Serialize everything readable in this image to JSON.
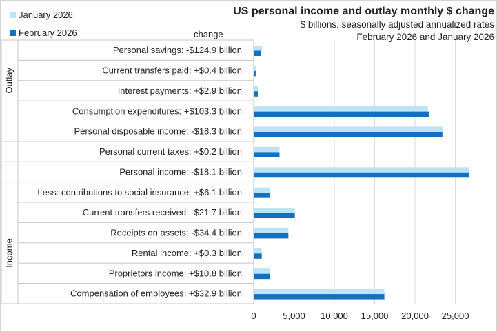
{
  "chart_data": {
    "type": "bar",
    "orientation": "horizontal",
    "title": "US personal income and outlay monthly $ change",
    "subtitle_lines": [
      "$ billions, seasonally adjusted annualized rates",
      "February 2026 and January 2026"
    ],
    "category_header": "change",
    "groups": [
      {
        "name": "Outlay",
        "rows": [
          0,
          3
        ]
      },
      {
        "name": "Income",
        "rows": [
          7,
          13
        ]
      }
    ],
    "categories": [
      "Personal savings:  -$124.9 billion",
      "Current transfers paid:  +$0.4 billion",
      "Interest payments:  +$2.9 billion",
      "Consumption expenditures:  +$103.3 billion",
      "Personal disposable income:  -$18.3 billion",
      "Personal current taxes:  +$0.2 billion",
      "Personal income:  -$18.1 billion",
      "Less: contributions to social insurance:  +$6.1 billion",
      "Current transfers received:  -$21.7 billion",
      "Receipts on assets:  -$34.4 billion",
      "Rental income:  +$0.3 billion",
      "Proprietors income:  +$10.8 billion",
      "Compensation of employees:  +$32.9 billion"
    ],
    "series": [
      {
        "name": "January 2026",
        "color": "#bde3f6",
        "values": [
          1050,
          250,
          520,
          21600,
          23400,
          3200,
          26700,
          2000,
          5100,
          4300,
          1000,
          2000,
          16200
        ]
      },
      {
        "name": "February 2026",
        "color": "#1570c0",
        "values": [
          930,
          250,
          520,
          21700,
          23400,
          3200,
          26700,
          2000,
          5100,
          4300,
          1000,
          2000,
          16200
        ]
      }
    ],
    "xlim": [
      0,
      28200
    ],
    "xticks": [
      0,
      5000,
      10000,
      15000,
      20000,
      25000
    ],
    "xtick_labels": [
      "0",
      "5,000",
      "10,000",
      "15,000",
      "20,000",
      "25,000"
    ],
    "grid": true,
    "legend_position": "top-left"
  }
}
